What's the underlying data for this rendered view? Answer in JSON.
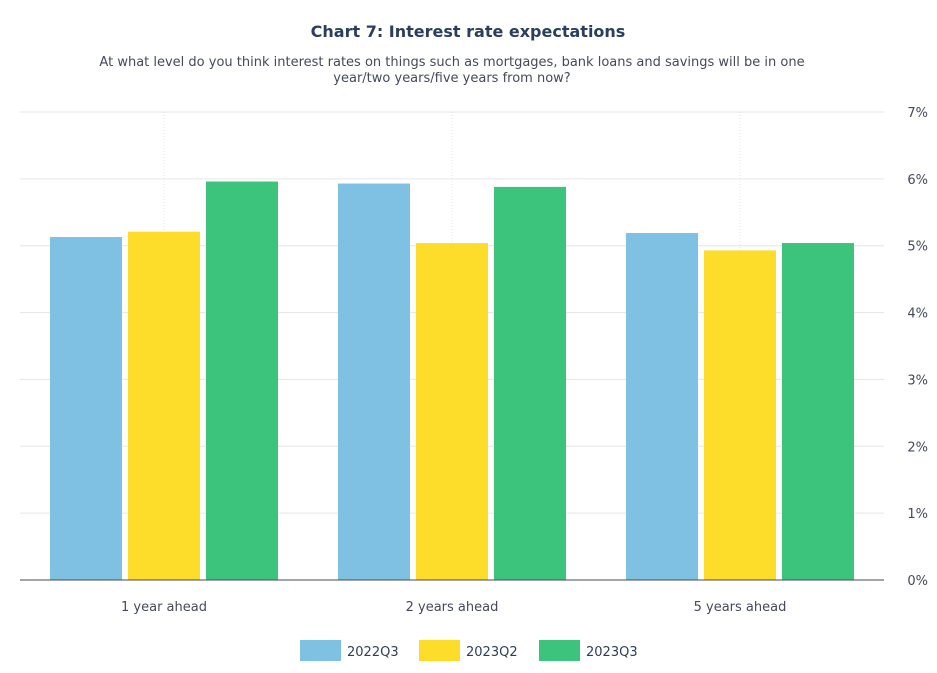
{
  "chart_data": {
    "type": "bar",
    "title": "Chart 7: Interest rate expectations",
    "subtitle_lines": [
      "At what level do you think interest rates on things such as mortgages, bank loans and savings will be in one",
      "year/two years/five years from now?"
    ],
    "categories": [
      "1 year ahead",
      "2 years ahead",
      "5 years ahead"
    ],
    "series": [
      {
        "name": "2022Q3",
        "color": "#7fc1e3",
        "values": [
          5.13,
          5.93,
          5.19
        ]
      },
      {
        "name": "2023Q2",
        "color": "#fddd2a",
        "values": [
          5.21,
          5.04,
          4.93
        ]
      },
      {
        "name": "2023Q3",
        "color": "#3cc47c",
        "values": [
          5.96,
          5.88,
          5.04
        ]
      }
    ],
    "ylim": [
      0,
      7
    ],
    "y_ticks": [
      0,
      1,
      2,
      3,
      4,
      5,
      6,
      7
    ],
    "y_tick_labels": [
      "0%",
      "1%",
      "2%",
      "3%",
      "4%",
      "5%",
      "6%",
      "7%"
    ],
    "y_axis_side": "right",
    "grid": true,
    "legend_position": "bottom-center"
  }
}
